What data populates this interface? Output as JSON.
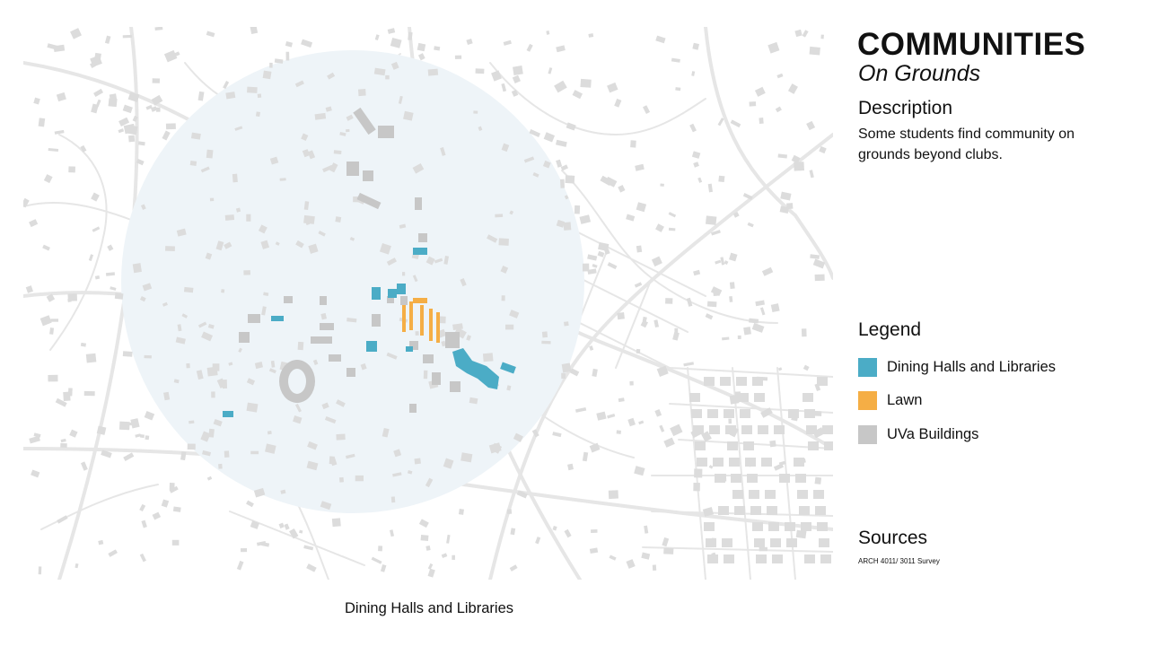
{
  "title": "COMMUNITIES",
  "subtitle": "On Grounds",
  "description": {
    "heading": "Description",
    "text": "Some students find community on grounds beyond clubs."
  },
  "legend": {
    "heading": "Legend",
    "items": [
      {
        "label": "Dining Halls and Libraries",
        "color": "#4bacc6"
      },
      {
        "label": "Lawn",
        "color": "#f5ae45"
      },
      {
        "label": "UVa Buildings",
        "color": "#c7c7c7"
      }
    ]
  },
  "sources": {
    "heading": "Sources",
    "text": "ARCH 4011/ 3011 Survey"
  },
  "map_caption": "Dining Halls and Libraries",
  "map_colors": {
    "radius_fill": "#eef4f8",
    "roads": "#e6e6e6",
    "buildings": "#dcdcdc",
    "uva_buildings": "#c7c7c7",
    "dining_libraries": "#4bacc6",
    "lawn": "#f5ae45"
  }
}
